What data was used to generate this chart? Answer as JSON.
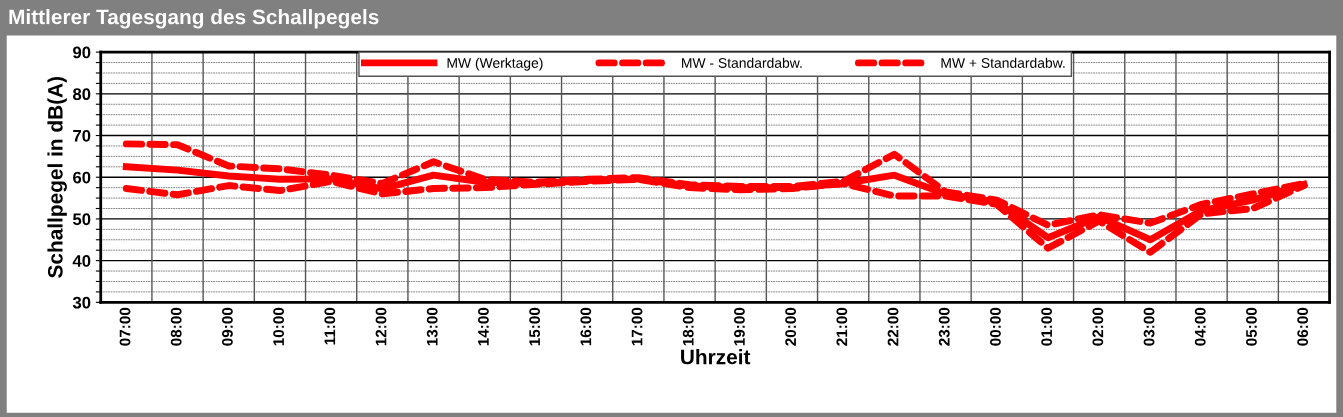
{
  "chart_data": {
    "type": "line",
    "title": "Mittlerer Tagesgang des Schallpegels",
    "xlabel": "Uhrzeit",
    "ylabel": "Schallpegel in dB(A)",
    "categories": [
      "07:00",
      "08:00",
      "09:00",
      "10:00",
      "11:00",
      "12:00",
      "13:00",
      "14:00",
      "15:00",
      "16:00",
      "17:00",
      "18:00",
      "19:00",
      "20:00",
      "21:00",
      "22:00",
      "23:00",
      "00:00",
      "01:00",
      "02:00",
      "03:00",
      "04:00",
      "05:00",
      "06:00"
    ],
    "series": [
      {
        "name": "MW (Werktage)",
        "color": "#ff0000",
        "line_style": "solid",
        "values": [
          62.5,
          61.7,
          60.3,
          59.5,
          59.6,
          57.2,
          60.5,
          58.8,
          58.5,
          59.2,
          59.6,
          57.9,
          57.5,
          57.5,
          58.5,
          60.5,
          56,
          54,
          45.5,
          50.5,
          45,
          52,
          54.5,
          58.3
        ]
      },
      {
        "name": "MW - Standardabw.",
        "color": "#ff0000",
        "line_style": "dashed",
        "values": [
          57.3,
          55.8,
          58,
          56.8,
          59,
          56,
          57.3,
          57.5,
          58.3,
          59,
          59.5,
          57.5,
          57,
          57.3,
          58.5,
          55.5,
          55.5,
          53.5,
          43,
          49.5,
          42,
          51.2,
          52.5,
          58
        ]
      },
      {
        "name": "MW + Standardabw.",
        "color": "#ff0000",
        "line_style": "dashed",
        "values": [
          68,
          67.8,
          62.7,
          62,
          60.5,
          58.5,
          63.7,
          59.5,
          58.8,
          59.5,
          59.9,
          58.2,
          57.8,
          57.8,
          59,
          65.5,
          56.5,
          54.5,
          48.5,
          51,
          49,
          53.5,
          56,
          58.5
        ]
      }
    ],
    "ylim": [
      30,
      90
    ],
    "yticks": [
      30,
      {
        "value": 32.5,
        "label": null
      },
      {
        "value": 35,
        "label": null
      },
      {
        "value": 37.5,
        "label": null
      },
      40,
      {
        "value": 42.5,
        "label": null
      },
      {
        "value": 45,
        "label": null
      },
      {
        "value": 47.5,
        "label": null
      },
      50,
      {
        "value": 52.5,
        "label": null
      },
      {
        "value": 55,
        "label": null
      },
      {
        "value": 57.5,
        "label": null
      },
      60,
      {
        "value": 62.5,
        "label": null
      },
      {
        "value": 65,
        "label": null
      },
      {
        "value": 67.5,
        "label": null
      },
      70,
      {
        "value": 72.5,
        "label": null
      },
      {
        "value": 75,
        "label": null
      },
      {
        "value": 77.5,
        "label": null
      },
      80,
      {
        "value": 82.5,
        "label": null
      },
      {
        "value": 85,
        "label": null
      },
      {
        "value": 87.5,
        "label": null
      },
      90
    ],
    "grid": true,
    "legend": "top",
    "marker": "none"
  }
}
